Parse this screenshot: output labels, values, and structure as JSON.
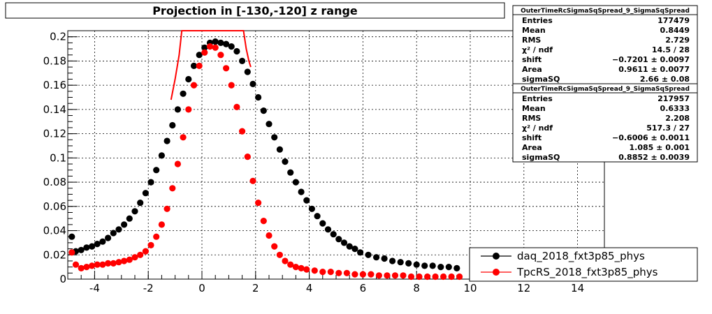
{
  "chart_data": {
    "type": "scatter",
    "title": "Projection in [-130,-120] z range",
    "xlabel": "",
    "ylabel": "",
    "xlim": [
      -5,
      15
    ],
    "ylim": [
      0,
      0.205
    ],
    "grid": true,
    "x_ticks": [
      "-4",
      "-2",
      "0",
      "2",
      "4",
      "6",
      "8",
      "10",
      "12",
      "14"
    ],
    "y_ticks": [
      "0",
      "0.02",
      "0.04",
      "0.06",
      "0.08",
      "0.1",
      "0.12",
      "0.14",
      "0.16",
      "0.18",
      "0.2"
    ],
    "legend_position": "bottom-right",
    "stats_boxes": [
      {
        "header": "OuterTimeRcSigmaSqSpread_9_SigmaSqSpread",
        "rows": [
          {
            "label": "Entries",
            "value": "177479"
          },
          {
            "label": "Mean",
            "value": "0.8449"
          },
          {
            "label": "RMS",
            "value": "2.729"
          },
          {
            "label": "χ² / ndf",
            "value": "14.5 / 28"
          },
          {
            "label": "shift",
            "value": "−0.7201 ± 0.0097"
          },
          {
            "label": "Area",
            "value": "0.9611 ± 0.0077"
          },
          {
            "label": "sigmaSQ",
            "value": "2.66 ± 0.08"
          }
        ]
      },
      {
        "header": "OuterTimeRcSigmaSqSpread_9_SigmaSqSpread",
        "rows": [
          {
            "label": "Entries",
            "value": "217957"
          },
          {
            "label": "Mean",
            "value": "0.6333"
          },
          {
            "label": "RMS",
            "value": "2.208"
          },
          {
            "label": "χ² / ndf",
            "value": "517.3 / 27"
          },
          {
            "label": "shift",
            "value": "−0.6006 ± 0.0011"
          },
          {
            "label": "Area",
            "value": "1.085 ± 0.001"
          },
          {
            "label": "sigmaSQ",
            "value": "0.8852 ± 0.0039"
          }
        ]
      }
    ],
    "series": [
      {
        "name": "daq_2018_fxt3p85_phys",
        "color": "#000000",
        "marker": "circle",
        "points": [
          [
            -4.85,
            0.035
          ],
          [
            -4.7,
            0.023
          ],
          [
            -4.5,
            0.024
          ],
          [
            -4.3,
            0.026
          ],
          [
            -4.1,
            0.027
          ],
          [
            -3.9,
            0.029
          ],
          [
            -3.7,
            0.031
          ],
          [
            -3.5,
            0.034
          ],
          [
            -3.3,
            0.038
          ],
          [
            -3.1,
            0.041
          ],
          [
            -2.9,
            0.045
          ],
          [
            -2.7,
            0.05
          ],
          [
            -2.5,
            0.056
          ],
          [
            -2.3,
            0.063
          ],
          [
            -2.1,
            0.071
          ],
          [
            -1.9,
            0.08
          ],
          [
            -1.7,
            0.09
          ],
          [
            -1.5,
            0.102
          ],
          [
            -1.3,
            0.114
          ],
          [
            -1.1,
            0.127
          ],
          [
            -0.9,
            0.14
          ],
          [
            -0.7,
            0.153
          ],
          [
            -0.5,
            0.165
          ],
          [
            -0.3,
            0.176
          ],
          [
            -0.1,
            0.185
          ],
          [
            0.1,
            0.191
          ],
          [
            0.3,
            0.195
          ],
          [
            0.5,
            0.196
          ],
          [
            0.7,
            0.195
          ],
          [
            0.9,
            0.194
          ],
          [
            1.1,
            0.192
          ],
          [
            1.3,
            0.188
          ],
          [
            1.5,
            0.18
          ],
          [
            1.7,
            0.171
          ],
          [
            1.9,
            0.161
          ],
          [
            2.1,
            0.15
          ],
          [
            2.3,
            0.139
          ],
          [
            2.5,
            0.128
          ],
          [
            2.7,
            0.117
          ],
          [
            2.9,
            0.107
          ],
          [
            3.1,
            0.097
          ],
          [
            3.3,
            0.088
          ],
          [
            3.5,
            0.08
          ],
          [
            3.7,
            0.072
          ],
          [
            3.9,
            0.065
          ],
          [
            4.1,
            0.058
          ],
          [
            4.3,
            0.052
          ],
          [
            4.5,
            0.046
          ],
          [
            4.7,
            0.041
          ],
          [
            4.9,
            0.037
          ],
          [
            5.1,
            0.033
          ],
          [
            5.3,
            0.03
          ],
          [
            5.5,
            0.027
          ],
          [
            5.7,
            0.025
          ],
          [
            5.9,
            0.022
          ],
          [
            6.2,
            0.02
          ],
          [
            6.5,
            0.018
          ],
          [
            6.8,
            0.017
          ],
          [
            7.1,
            0.015
          ],
          [
            7.4,
            0.014
          ],
          [
            7.7,
            0.013
          ],
          [
            8.0,
            0.012
          ],
          [
            8.3,
            0.011
          ],
          [
            8.6,
            0.011
          ],
          [
            8.9,
            0.01
          ],
          [
            9.2,
            0.01
          ],
          [
            9.5,
            0.009
          ]
        ]
      },
      {
        "name": "TpcRS_2018_fxt3p85_phys",
        "color": "#ff0000",
        "marker": "circle",
        "points": [
          [
            -4.85,
            0.022
          ],
          [
            -4.7,
            0.012
          ],
          [
            -4.5,
            0.009
          ],
          [
            -4.3,
            0.01
          ],
          [
            -4.1,
            0.011
          ],
          [
            -3.9,
            0.012
          ],
          [
            -3.7,
            0.012
          ],
          [
            -3.5,
            0.013
          ],
          [
            -3.3,
            0.013
          ],
          [
            -3.1,
            0.014
          ],
          [
            -2.9,
            0.015
          ],
          [
            -2.7,
            0.016
          ],
          [
            -2.5,
            0.018
          ],
          [
            -2.3,
            0.02
          ],
          [
            -2.1,
            0.023
          ],
          [
            -1.9,
            0.028
          ],
          [
            -1.7,
            0.035
          ],
          [
            -1.5,
            0.045
          ],
          [
            -1.3,
            0.058
          ],
          [
            -1.1,
            0.075
          ],
          [
            -0.9,
            0.095
          ],
          [
            -0.7,
            0.117
          ],
          [
            -0.5,
            0.14
          ],
          [
            -0.3,
            0.16
          ],
          [
            -0.1,
            0.176
          ],
          [
            0.1,
            0.187
          ],
          [
            0.3,
            0.192
          ],
          [
            0.5,
            0.191
          ],
          [
            0.7,
            0.185
          ],
          [
            0.9,
            0.174
          ],
          [
            1.1,
            0.16
          ],
          [
            1.3,
            0.142
          ],
          [
            1.5,
            0.122
          ],
          [
            1.7,
            0.101
          ],
          [
            1.9,
            0.081
          ],
          [
            2.1,
            0.063
          ],
          [
            2.3,
            0.048
          ],
          [
            2.5,
            0.036
          ],
          [
            2.7,
            0.027
          ],
          [
            2.9,
            0.02
          ],
          [
            3.1,
            0.015
          ],
          [
            3.3,
            0.012
          ],
          [
            3.5,
            0.01
          ],
          [
            3.7,
            0.009
          ],
          [
            3.9,
            0.008
          ],
          [
            4.2,
            0.007
          ],
          [
            4.5,
            0.006
          ],
          [
            4.8,
            0.006
          ],
          [
            5.1,
            0.005
          ],
          [
            5.4,
            0.005
          ],
          [
            5.7,
            0.004
          ],
          [
            6.0,
            0.004
          ],
          [
            6.3,
            0.004
          ],
          [
            6.6,
            0.003
          ],
          [
            6.9,
            0.003
          ],
          [
            7.2,
            0.003
          ],
          [
            7.5,
            0.003
          ],
          [
            7.8,
            0.002
          ],
          [
            8.1,
            0.002
          ],
          [
            8.4,
            0.002
          ],
          [
            8.7,
            0.002
          ],
          [
            9.0,
            0.002
          ],
          [
            9.3,
            0.002
          ],
          [
            9.6,
            0.002
          ]
        ]
      }
    ],
    "fit_curve": {
      "color": "#ff0000",
      "points": [
        [
          -1.15,
          0.148
        ],
        [
          -1.0,
          0.165
        ],
        [
          -0.85,
          0.185
        ],
        [
          -0.75,
          0.205
        ],
        [
          1.55,
          0.205
        ],
        [
          1.65,
          0.19
        ],
        [
          1.75,
          0.18
        ],
        [
          1.82,
          0.175
        ]
      ]
    }
  }
}
